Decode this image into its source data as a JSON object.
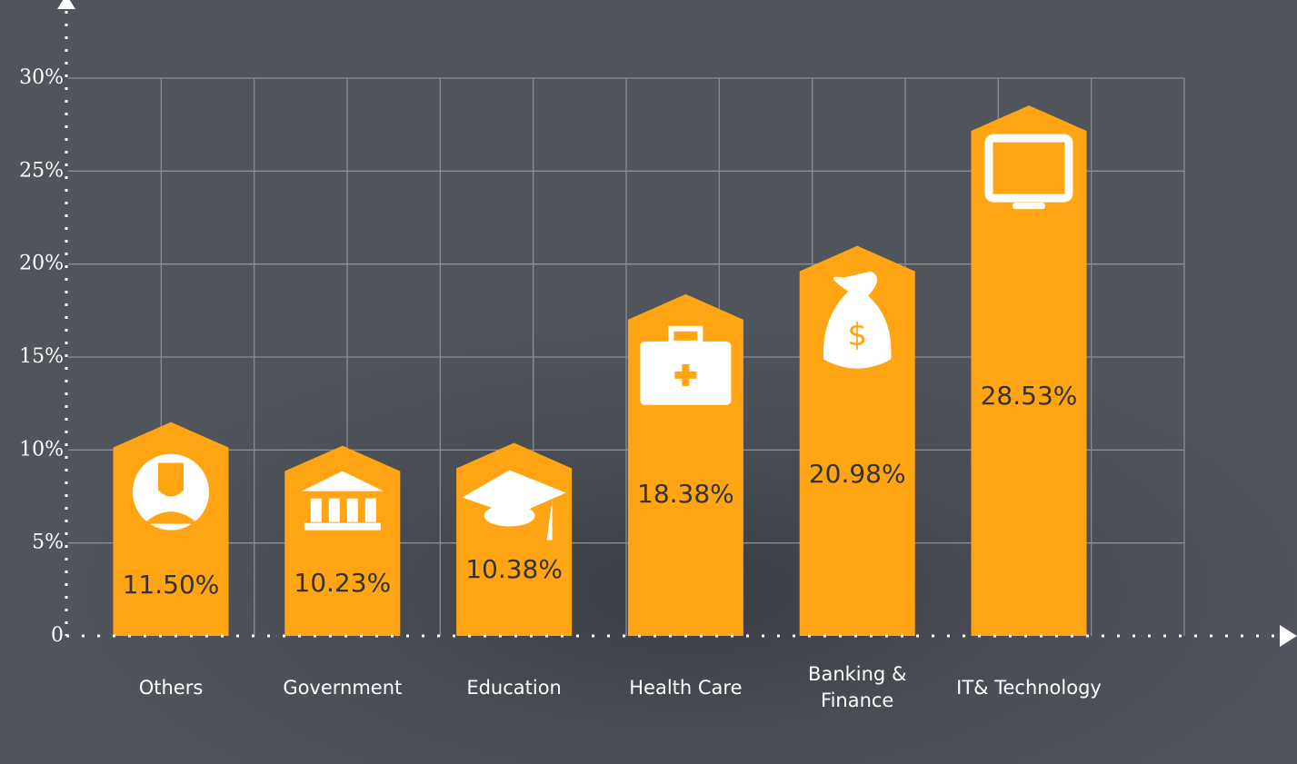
{
  "chart_data": {
    "type": "bar",
    "categories": [
      "Others",
      "Government",
      "Education",
      "Health Care",
      "Banking &\nFinance",
      "IT& Technology"
    ],
    "values": [
      11.5,
      10.23,
      10.38,
      18.38,
      20.98,
      28.53
    ],
    "value_labels": [
      "11.50%",
      "10.23%",
      "10.38%",
      "18.38%",
      "20.98%",
      "28.53%"
    ],
    "color": "#ffa514",
    "ylim": [
      0,
      30
    ],
    "yticks": [
      0,
      {
        "value": 5,
        "label": "5%"
      },
      {
        "value": 10,
        "label": "10%"
      },
      {
        "value": 15,
        "label": "15%"
      },
      {
        "value": 20,
        "label": "20%"
      },
      {
        "value": 25,
        "label": "25%"
      },
      {
        "value": 30,
        "label": "30%"
      }
    ],
    "grid": true
  }
}
